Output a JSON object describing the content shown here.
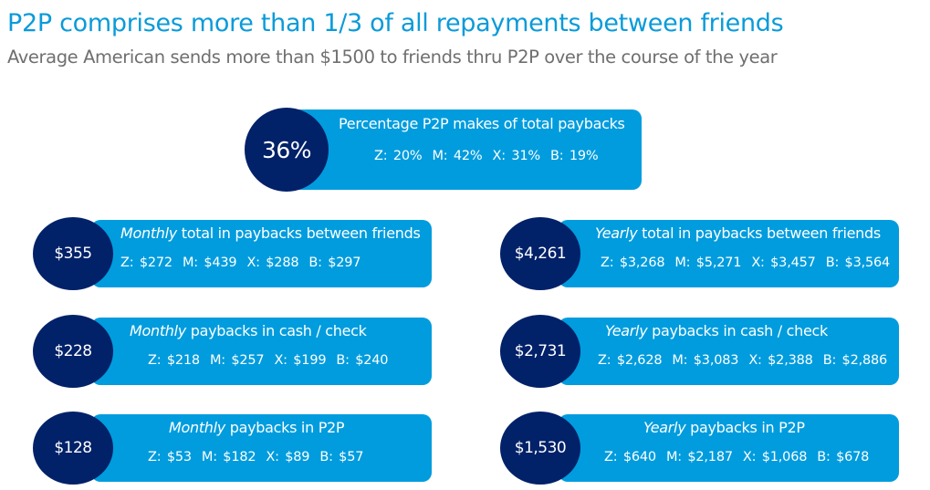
{
  "title": "P2P comprises more than 1/3 of all repayments between friends",
  "subtitle": "Average American sends more than $1500 to friends thru P2P over the course of the year",
  "colors": {
    "bar": "#009cde",
    "circle": "#012169",
    "title": "#0a9bd9"
  },
  "top": {
    "value": "36%",
    "label": "Percentage P2P makes of total paybacks",
    "stats": [
      "Z: 20%",
      "M: 42%",
      "X: 31%",
      "B: 19%"
    ]
  },
  "cards": [
    {
      "value": "$355",
      "em": "Monthly",
      "label": " total in paybacks between friends",
      "stats": [
        "Z: $272",
        "M: $439",
        "X: $288",
        "B: $297"
      ]
    },
    {
      "value": "$4,261",
      "em": "Yearly",
      "label": " total in paybacks between friends",
      "stats": [
        "Z: $3,268",
        "M: $5,271",
        "X: $3,457",
        "B: $3,564"
      ]
    },
    {
      "value": "$228",
      "em": "Monthly",
      "label": " paybacks in cash / check",
      "stats": [
        "Z: $218",
        "M: $257",
        "X: $199",
        "B: $240"
      ]
    },
    {
      "value": "$2,731",
      "em": "Yearly",
      "label": " paybacks in cash / check",
      "stats": [
        "Z: $2,628",
        "M: $3,083",
        "X: $2,388",
        "B: $2,886"
      ]
    },
    {
      "value": "$128",
      "em": "Monthly",
      "label": " paybacks in P2P",
      "stats": [
        "Z: $53",
        "M: $182",
        "X: $89",
        "B: $57"
      ]
    },
    {
      "value": "$1,530",
      "em": "Yearly",
      "label": " paybacks in P2P",
      "stats": [
        "Z: $640",
        "M: $2,187",
        "X: $1,068",
        "B: $678"
      ]
    }
  ]
}
